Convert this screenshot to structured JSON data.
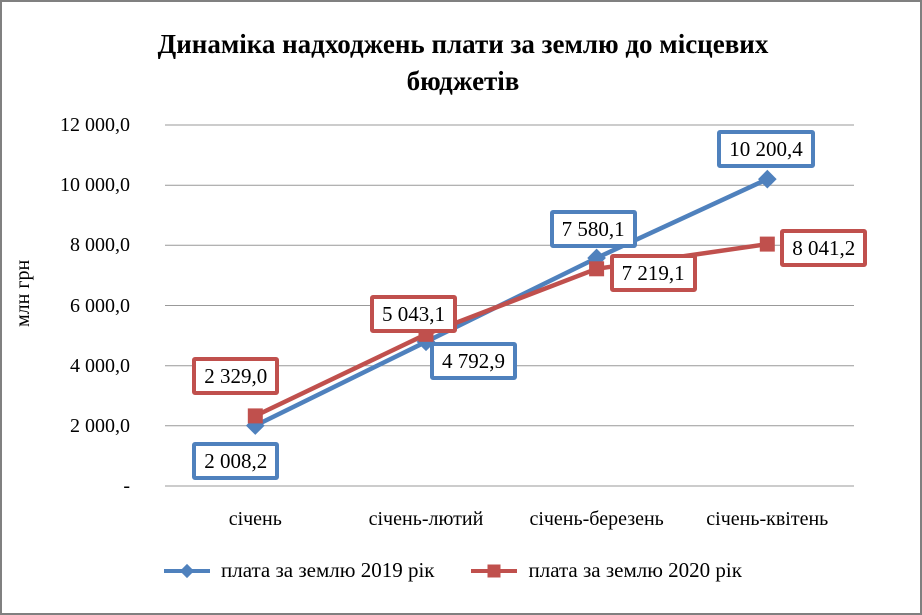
{
  "frame": {
    "border_color": "#808080",
    "background": "#ffffff"
  },
  "chart_data": {
    "type": "line",
    "title": "Динаміка надходжень плати за землю до місцевих бюджетів",
    "ylabel": "млн грн",
    "xlabel": "",
    "categories": [
      "січень",
      "січень-лютий",
      "січень-березень",
      "січень-квітень"
    ],
    "series": [
      {
        "name": "плата за землю 2019 рік",
        "color": "#4F81BD",
        "marker": "diamond",
        "values": [
          2008.2,
          4792.9,
          7580.1,
          10200.4
        ],
        "labels": [
          "2 008,2",
          "4 792,9",
          "7 580,1",
          "10 200,4"
        ]
      },
      {
        "name": "плата за землю 2020 рік",
        "color": "#C0504D",
        "marker": "square",
        "values": [
          2329.0,
          5043.1,
          7219.1,
          8041.2
        ],
        "labels": [
          "2 329,0",
          "5 043,1",
          "7 219,1",
          "8 041,2"
        ]
      }
    ],
    "y_axis": {
      "min": 0,
      "max": 12000,
      "ticks": [
        {
          "label": "12 000,0",
          "value": 12000
        },
        {
          "label": "10 000,0",
          "value": 10000
        },
        {
          "label": "8 000,0",
          "value": 8000
        },
        {
          "label": "6 000,0",
          "value": 6000
        },
        {
          "label": "4 000,0",
          "value": 4000
        },
        {
          "label": "2 000,0",
          "value": 2000
        },
        {
          "label": "-",
          "value": 0
        }
      ]
    },
    "grid": "horizontal",
    "gridline_color": "#999999",
    "legend_position": "bottom"
  }
}
